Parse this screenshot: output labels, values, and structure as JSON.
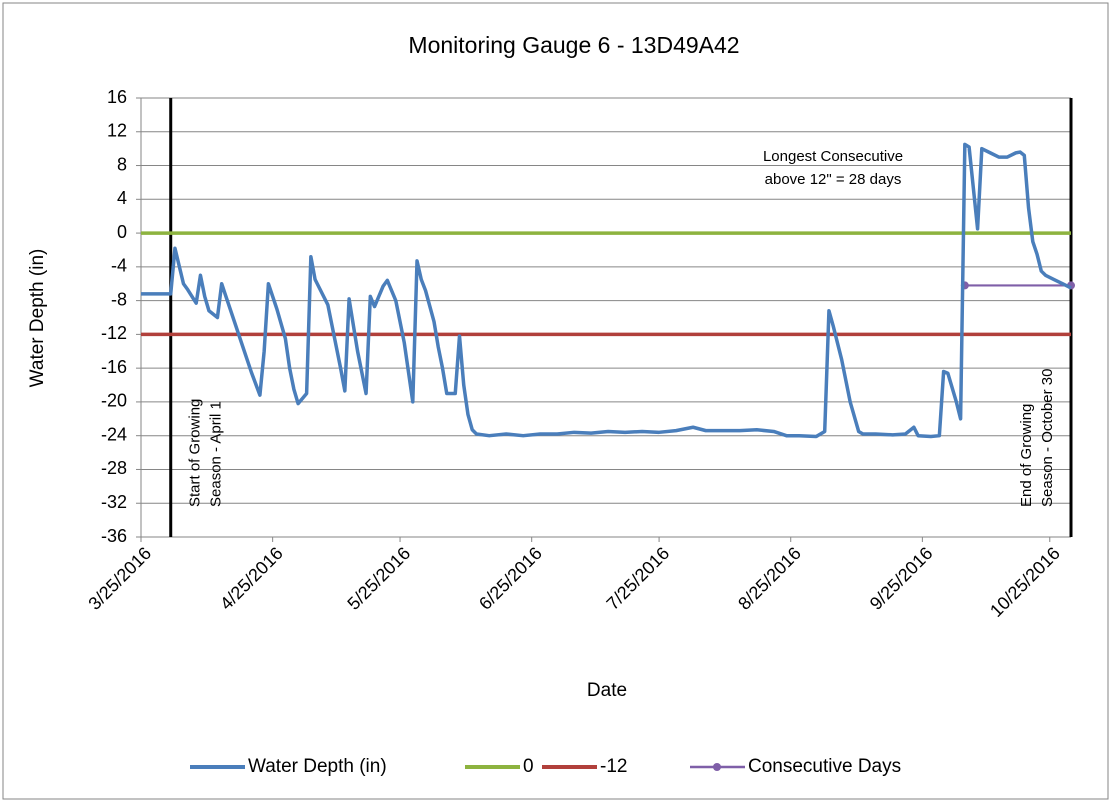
{
  "chart_data": {
    "type": "line",
    "title": "Monitoring Gauge 6 - 13D49A42",
    "x_label": "Date",
    "y_label": "Water Depth (in)",
    "xlim": [
      "2016-03-25",
      "2016-10-30"
    ],
    "xticks": [
      {
        "value": "2016-03-25",
        "label": "3/25/2016"
      },
      {
        "value": "2016-04-25",
        "label": "4/25/2016"
      },
      {
        "value": "2016-05-25",
        "label": "5/25/2016"
      },
      {
        "value": "2016-06-25",
        "label": "6/25/2016"
      },
      {
        "value": "2016-07-25",
        "label": "7/25/2016"
      },
      {
        "value": "2016-08-25",
        "label": "8/25/2016"
      },
      {
        "value": "2016-09-25",
        "label": "9/25/2016"
      },
      {
        "value": "2016-10-25",
        "label": "10/25/2016"
      }
    ],
    "ylim": [
      -36,
      16
    ],
    "yticks": [
      -36,
      -32,
      -28,
      -24,
      -20,
      -16,
      -12,
      -8,
      -4,
      0,
      4,
      8,
      12,
      16
    ],
    "grid": true,
    "legend": "bottom",
    "annotations": [
      {
        "x": "2016-04-01",
        "lines": [
          "Start of Growing",
          "Season - April 1"
        ]
      },
      {
        "x": "2016-10-30",
        "lines": [
          "End of Growing",
          "Season - October 30"
        ]
      },
      {
        "lines": [
          "Longest Consecutive",
          "above 12\" =  28 days"
        ]
      }
    ],
    "series": [
      {
        "name": "Water Depth (in)",
        "color": "#4a7ebb",
        "markers": false,
        "x": [
          "2016-03-25",
          "2016-04-01",
          "2016-04-02",
          "2016-04-04",
          "2016-04-05",
          "2016-04-07",
          "2016-04-08",
          "2016-04-09",
          "2016-04-10",
          "2016-04-12",
          "2016-04-13",
          "2016-04-14",
          "2016-04-16",
          "2016-04-18",
          "2016-04-20",
          "2016-04-22",
          "2016-04-23",
          "2016-04-24",
          "2016-04-26",
          "2016-04-28",
          "2016-04-29",
          "2016-04-30",
          "2016-05-01",
          "2016-05-03",
          "2016-05-04",
          "2016-05-05",
          "2016-05-07",
          "2016-05-08",
          "2016-05-10",
          "2016-05-11",
          "2016-05-12",
          "2016-05-13",
          "2016-05-15",
          "2016-05-16",
          "2016-05-17",
          "2016-05-18",
          "2016-05-19",
          "2016-05-21",
          "2016-05-22",
          "2016-05-24",
          "2016-05-26",
          "2016-05-27",
          "2016-05-28",
          "2016-05-29",
          "2016-05-30",
          "2016-05-31",
          "2016-06-02",
          "2016-06-03",
          "2016-06-04",
          "2016-06-05",
          "2016-06-07",
          "2016-06-08",
          "2016-06-09",
          "2016-06-10",
          "2016-06-11",
          "2016-06-12",
          "2016-06-15",
          "2016-06-19",
          "2016-06-23",
          "2016-06-27",
          "2016-07-01",
          "2016-07-05",
          "2016-07-09",
          "2016-07-13",
          "2016-07-17",
          "2016-07-21",
          "2016-07-25",
          "2016-07-29",
          "2016-08-02",
          "2016-08-05",
          "2016-08-09",
          "2016-08-13",
          "2016-08-17",
          "2016-08-21",
          "2016-08-24",
          "2016-08-27",
          "2016-08-31",
          "2016-09-02",
          "2016-09-03",
          "2016-09-04",
          "2016-09-06",
          "2016-09-08",
          "2016-09-10",
          "2016-09-11",
          "2016-09-14",
          "2016-09-18",
          "2016-09-21",
          "2016-09-23",
          "2016-09-24",
          "2016-09-27",
          "2016-09-29",
          "2016-09-30",
          "2016-10-01",
          "2016-10-03",
          "2016-10-04",
          "2016-10-05",
          "2016-10-06",
          "2016-10-08",
          "2016-10-09",
          "2016-10-11",
          "2016-10-13",
          "2016-10-15",
          "2016-10-17",
          "2016-10-18",
          "2016-10-19",
          "2016-10-20",
          "2016-10-21",
          "2016-10-22",
          "2016-10-23",
          "2016-10-24",
          "2016-10-26",
          "2016-10-28",
          "2016-10-30"
        ],
        "values": [
          -7.2,
          -7.2,
          -1.8,
          -6,
          -6.7,
          -8.3,
          -5,
          -7.5,
          -9.2,
          -10,
          -6,
          -7.5,
          -10.5,
          -13.5,
          -16.5,
          -19.2,
          -14,
          -6,
          -9,
          -12.5,
          -16,
          -18.5,
          -20.2,
          -19,
          -2.8,
          -5.5,
          -7.5,
          -8.5,
          -13.5,
          -16,
          -18.7,
          -7.8,
          -14,
          -16.5,
          -19,
          -7.5,
          -8.7,
          -6.3,
          -5.6,
          -8,
          -13,
          -16.5,
          -20,
          -3.3,
          -5.5,
          -6.8,
          -10.5,
          -13.5,
          -16,
          -19,
          -19,
          -12.2,
          -18,
          -21.5,
          -23.3,
          -23.8,
          -24,
          -23.8,
          -24,
          -23.8,
          -23.8,
          -23.6,
          -23.7,
          -23.5,
          -23.6,
          -23.5,
          -23.6,
          -23.4,
          -23,
          -23.4,
          -23.4,
          -23.4,
          -23.3,
          -23.5,
          -24,
          -24,
          -24.1,
          -23.5,
          -9.2,
          -11,
          -15,
          -20,
          -23.5,
          -23.8,
          -23.8,
          -23.9,
          -23.8,
          -23,
          -24,
          -24.1,
          -24,
          -16.4,
          -16.6,
          -20,
          -22,
          10.5,
          10.2,
          0.5,
          10,
          9.5,
          9,
          9,
          9.5,
          9.6,
          9.2,
          3,
          -1,
          -2.5,
          -4.5,
          -5,
          -5.5,
          -6,
          -6.5
        ]
      },
      {
        "name": "0",
        "color": "#8db33f",
        "markers": false,
        "x": [
          "2016-03-25",
          "2016-10-30"
        ],
        "values": [
          0,
          0
        ]
      },
      {
        "name": "-12",
        "color": "#b1403b",
        "markers": false,
        "x": [
          "2016-03-25",
          "2016-10-30"
        ],
        "values": [
          -12,
          -12
        ]
      },
      {
        "name": "Consecutive Days",
        "color": "#7f5fa8",
        "markers": true,
        "x": [
          "2016-10-05",
          "2016-10-30"
        ],
        "values": [
          -6.2,
          -6.2
        ]
      }
    ]
  }
}
